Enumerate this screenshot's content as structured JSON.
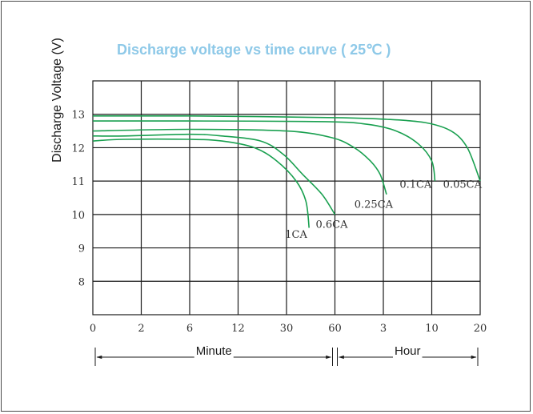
{
  "chart_data": {
    "type": "line",
    "title": "Discharge voltage vs time curve ( 25℃ )",
    "ylabel": "Discharge Voltage (V)",
    "ylim": [
      7,
      14
    ],
    "y_ticks": [
      "13",
      "12",
      "11",
      "10",
      "9",
      "8"
    ],
    "x_ticks": [
      "0",
      "2",
      "6",
      "12",
      "30",
      "60",
      "3",
      "10",
      "20"
    ],
    "x_units": [
      {
        "label": "Minute",
        "from_tick": 0,
        "to_tick": 5
      },
      {
        "label": "Hour",
        "from_tick": 5,
        "to_tick": 8
      }
    ],
    "grid": true,
    "colors": {
      "curve": "#1aa050",
      "grid": "#1a1a1a"
    },
    "series": [
      {
        "name": "1CA",
        "points": [
          [
            0,
            12.2
          ],
          [
            2,
            12.25
          ],
          [
            6,
            12.25
          ],
          [
            8,
            12.2
          ],
          [
            10,
            12.0
          ],
          [
            11.4,
            11.6
          ],
          [
            12.6,
            11.0
          ],
          [
            13.2,
            10.4
          ],
          [
            13.4,
            9.6
          ]
        ]
      },
      {
        "name": "0.6CA",
        "points": [
          [
            0,
            12.35
          ],
          [
            2,
            12.35
          ],
          [
            6,
            12.4
          ],
          [
            8,
            12.35
          ],
          [
            10.4,
            12.2
          ],
          [
            11.8,
            11.8
          ],
          [
            13.0,
            11.2
          ],
          [
            14.2,
            10.6
          ],
          [
            15.0,
            10.0
          ]
        ]
      },
      {
        "name": "0.25CA",
        "points": [
          [
            0,
            12.5
          ],
          [
            6,
            12.55
          ],
          [
            12,
            12.5
          ],
          [
            14.8,
            12.3
          ],
          [
            16.2,
            12.0
          ],
          [
            17.2,
            11.6
          ],
          [
            17.8,
            11.2
          ],
          [
            18.2,
            10.6
          ]
        ]
      },
      {
        "name": "0.1CA",
        "points": [
          [
            0,
            12.8
          ],
          [
            6,
            12.8
          ],
          [
            14.4,
            12.78
          ],
          [
            17.0,
            12.7
          ],
          [
            18.8,
            12.5
          ],
          [
            20.2,
            12.1
          ],
          [
            21.0,
            11.6
          ],
          [
            21.2,
            11.0
          ]
        ]
      },
      {
        "name": "0.05CA",
        "points": [
          [
            0,
            12.95
          ],
          [
            6,
            12.95
          ],
          [
            15.0,
            12.9
          ],
          [
            18.2,
            12.85
          ],
          [
            20.6,
            12.75
          ],
          [
            22.2,
            12.5
          ],
          [
            23.2,
            12.0
          ],
          [
            24.0,
            11.0
          ]
        ]
      }
    ],
    "series_labels": [
      {
        "name": "1CA",
        "x": 12.6,
        "y": 9.3
      },
      {
        "name": "0.6CA",
        "x": 14.8,
        "y": 9.6
      },
      {
        "name": "0.25CA",
        "x": 17.4,
        "y": 10.2
      },
      {
        "name": "0.1CA",
        "x": 20.0,
        "y": 10.8
      },
      {
        "name": "0.05CA",
        "x": 22.9,
        "y": 10.8
      }
    ]
  }
}
